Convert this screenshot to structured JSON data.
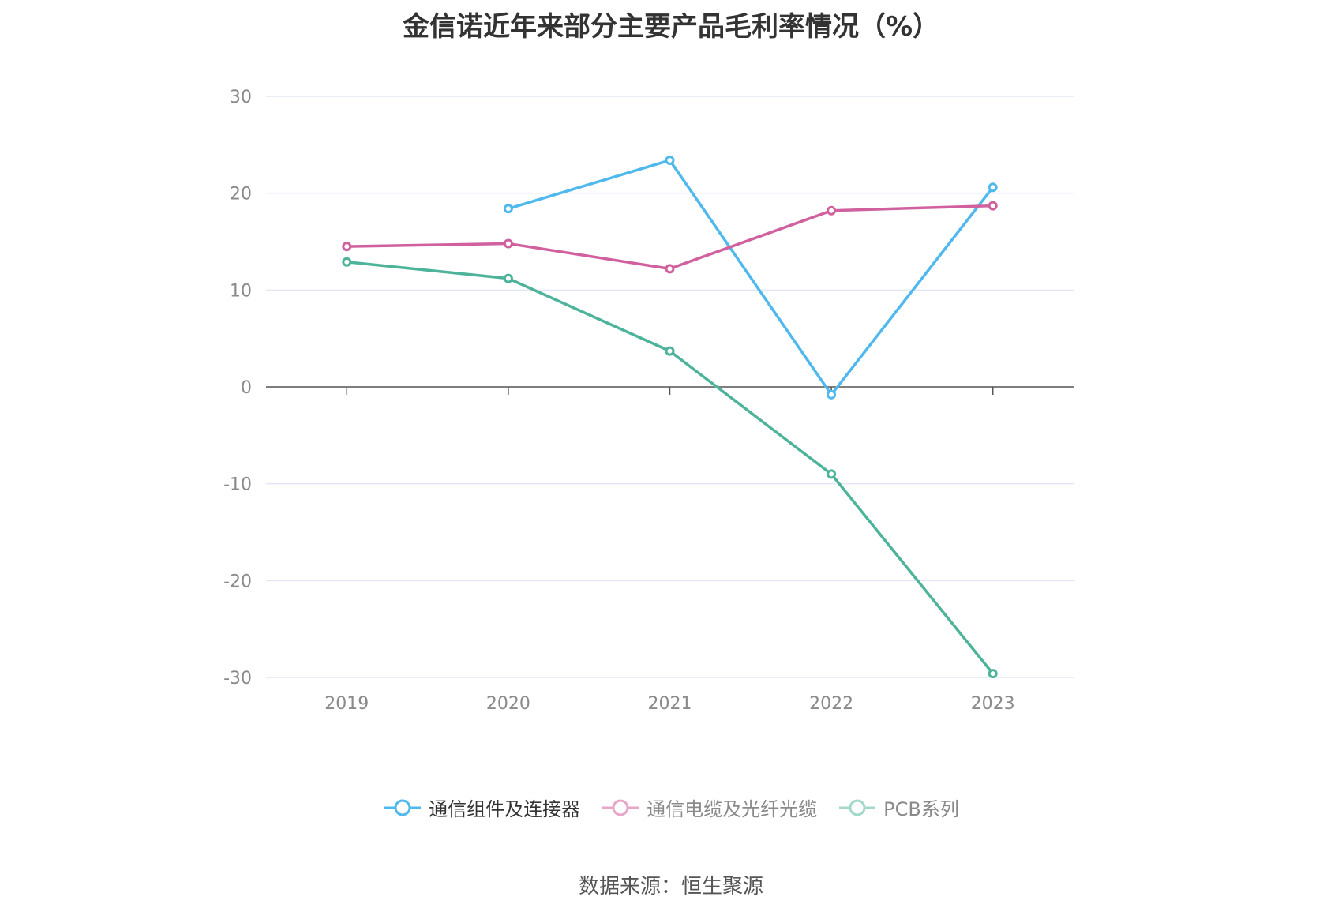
{
  "title": "金信诺近年来部分主要产品毛利率情况（%）",
  "source": "数据来源：恒生聚源",
  "colors": {
    "series1": "#4fb8ec",
    "series2": "#d0609e",
    "series3": "#4db39a",
    "grid": "#e3e6f5",
    "axis": "#555555",
    "tick_text": "#8a8a8a"
  },
  "legend": [
    {
      "label": "通信组件及连接器",
      "active": true
    },
    {
      "label": "通信电缆及光纤光缆",
      "active": false
    },
    {
      "label": "PCB系列",
      "active": false
    }
  ],
  "chart_data": {
    "type": "line",
    "title": "金信诺近年来部分主要产品毛利率情况（%）",
    "categories": [
      "2019",
      "2020",
      "2021",
      "2022",
      "2023"
    ],
    "yticks": [
      30,
      20,
      10,
      0,
      -10,
      -20,
      -30
    ],
    "ylim": [
      -30,
      30
    ],
    "grid": true,
    "legend_position": "bottom",
    "series": [
      {
        "name": "通信组件及连接器",
        "values": [
          null,
          18.4,
          23.4,
          -0.8,
          20.6
        ]
      },
      {
        "name": "通信电缆及光纤光缆",
        "values": [
          14.5,
          14.8,
          12.2,
          18.2,
          18.7
        ]
      },
      {
        "name": "PCB系列",
        "values": [
          12.9,
          11.2,
          3.7,
          -9.0,
          -29.6
        ]
      }
    ]
  }
}
